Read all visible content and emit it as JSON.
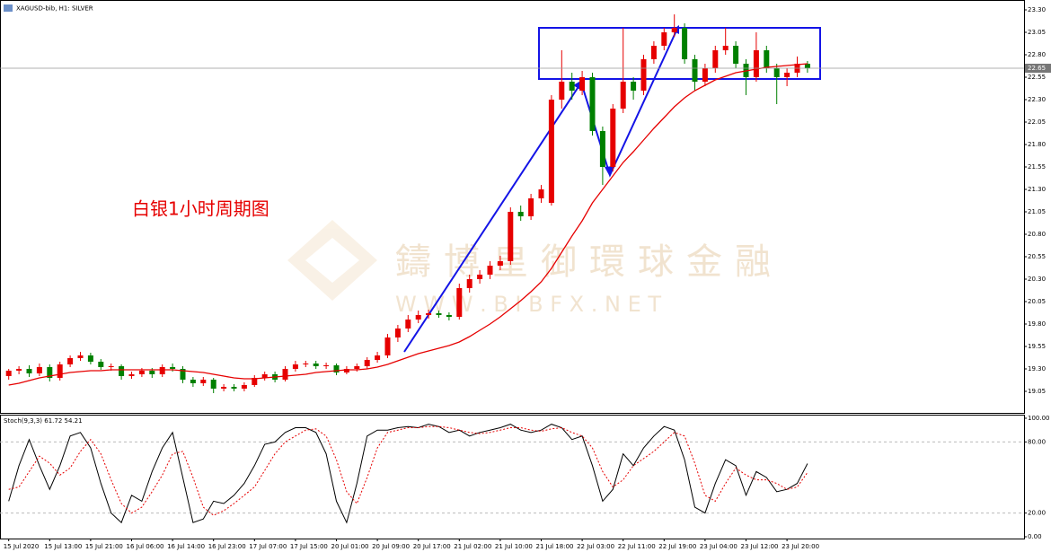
{
  "watermark": {
    "cn": "鑄博皇御環球金融",
    "web": "W W W . B I B F X . N E T"
  },
  "chart_data": [
    {
      "type": "candlestick",
      "title": "XAGUSD-bib, H1: SILVER",
      "annotation": "白银1小时周期图",
      "up_color": "#e60000",
      "down_color": "#008000",
      "categories": [
        "15 Jul 2020",
        null,
        null,
        null,
        "15 Jul 13:00",
        null,
        null,
        null,
        "15 Jul 21:00",
        null,
        null,
        null,
        "16 Jul 06:00",
        null,
        null,
        null,
        "16 Jul 14:00",
        null,
        null,
        null,
        "16 Jul 23:00",
        null,
        null,
        null,
        "17 Jul 07:00",
        null,
        null,
        null,
        "17 Jul 15:00",
        null,
        null,
        null,
        "20 Jul 01:00",
        null,
        null,
        null,
        "20 Jul 09:00",
        null,
        null,
        null,
        "20 Jul 17:00",
        null,
        null,
        null,
        "21 Jul 02:00",
        null,
        null,
        null,
        "21 Jul 10:00",
        null,
        null,
        null,
        "21 Jul 18:00",
        null,
        null,
        null,
        "22 Jul 03:00",
        null,
        null,
        null,
        "22 Jul 11:00",
        null,
        null,
        null,
        "22 Jul 19:00",
        null,
        null,
        null,
        "23 Jul 04:00",
        null,
        null,
        null,
        "23 Jul 12:00",
        null,
        null,
        null,
        "23 Jul 20:00",
        null,
        null
      ],
      "candles": [
        [
          19.22,
          19.3,
          19.18,
          19.28
        ],
        [
          19.28,
          19.33,
          19.24,
          19.3
        ],
        [
          19.3,
          19.34,
          19.21,
          19.25
        ],
        [
          19.25,
          19.36,
          19.22,
          19.32
        ],
        [
          19.32,
          19.35,
          19.16,
          19.2
        ],
        [
          19.2,
          19.38,
          19.17,
          19.35
        ],
        [
          19.35,
          19.45,
          19.32,
          19.42
        ],
        [
          19.42,
          19.49,
          19.39,
          19.45
        ],
        [
          19.45,
          19.48,
          19.35,
          19.38
        ],
        [
          19.38,
          19.41,
          19.29,
          19.32
        ],
        [
          19.32,
          19.36,
          19.28,
          19.33
        ],
        [
          19.33,
          19.35,
          19.18,
          19.22
        ],
        [
          19.22,
          19.27,
          19.19,
          19.24
        ],
        [
          19.24,
          19.31,
          19.21,
          19.28
        ],
        [
          19.28,
          19.31,
          19.2,
          19.24
        ],
        [
          19.24,
          19.35,
          19.21,
          19.32
        ],
        [
          19.32,
          19.36,
          19.27,
          19.3
        ],
        [
          19.3,
          19.33,
          19.14,
          19.18
        ],
        [
          19.18,
          19.21,
          19.1,
          19.14
        ],
        [
          19.14,
          19.21,
          19.11,
          19.18
        ],
        [
          19.18,
          19.2,
          19.03,
          19.08
        ],
        [
          19.08,
          19.13,
          19.05,
          19.1
        ],
        [
          19.1,
          19.13,
          19.05,
          19.08
        ],
        [
          19.08,
          19.15,
          19.05,
          19.12
        ],
        [
          19.12,
          19.23,
          19.1,
          19.2
        ],
        [
          19.2,
          19.27,
          19.17,
          19.24
        ],
        [
          19.24,
          19.27,
          19.15,
          19.18
        ],
        [
          19.18,
          19.33,
          19.16,
          19.3
        ],
        [
          19.3,
          19.39,
          19.27,
          19.35
        ],
        [
          19.35,
          19.39,
          19.32,
          19.36
        ],
        [
          19.36,
          19.39,
          19.3,
          19.33
        ],
        [
          19.33,
          19.37,
          19.3,
          19.34
        ],
        [
          19.34,
          19.36,
          19.23,
          19.26
        ],
        [
          19.26,
          19.33,
          19.24,
          19.3
        ],
        [
          19.3,
          19.36,
          19.27,
          19.33
        ],
        [
          19.33,
          19.43,
          19.3,
          19.4
        ],
        [
          19.4,
          19.49,
          19.37,
          19.45
        ],
        [
          19.45,
          19.69,
          19.42,
          19.65
        ],
        [
          19.65,
          19.79,
          19.6,
          19.75
        ],
        [
          19.75,
          19.9,
          19.71,
          19.85
        ],
        [
          19.85,
          19.95,
          19.81,
          19.9
        ],
        [
          19.9,
          19.96,
          19.86,
          19.92
        ],
        [
          19.92,
          19.95,
          19.87,
          19.9
        ],
        [
          19.9,
          19.93,
          19.84,
          19.88
        ],
        [
          19.88,
          20.25,
          19.85,
          20.2
        ],
        [
          20.2,
          20.35,
          20.15,
          20.3
        ],
        [
          20.3,
          20.4,
          20.25,
          20.35
        ],
        [
          20.35,
          20.5,
          20.3,
          20.45
        ],
        [
          20.45,
          20.56,
          20.4,
          20.5
        ],
        [
          20.5,
          21.1,
          20.46,
          21.05
        ],
        [
          21.05,
          21.12,
          20.95,
          21
        ],
        [
          21,
          21.25,
          20.96,
          21.2
        ],
        [
          21.2,
          21.35,
          21.15,
          21.3
        ],
        [
          21.15,
          22.35,
          21.12,
          22.3
        ],
        [
          22.3,
          22.85,
          22.2,
          22.5
        ],
        [
          22.5,
          22.6,
          22.3,
          22.4
        ],
        [
          22.4,
          22.62,
          22.35,
          22.55
        ],
        [
          22.55,
          22.6,
          21.9,
          21.95
        ],
        [
          21.95,
          22,
          21.35,
          21.55
        ],
        [
          21.55,
          22.25,
          21.5,
          22.2
        ],
        [
          22.2,
          23.1,
          22.15,
          22.5
        ],
        [
          22.5,
          22.55,
          22.3,
          22.4
        ],
        [
          22.4,
          22.8,
          22.35,
          22.75
        ],
        [
          22.75,
          22.95,
          22.7,
          22.9
        ],
        [
          22.9,
          23.1,
          22.85,
          23.05
        ],
        [
          23.05,
          23.25,
          23,
          23.1
        ],
        [
          23.1,
          23.15,
          22.7,
          22.75
        ],
        [
          22.75,
          22.8,
          22.4,
          22.5
        ],
        [
          22.5,
          22.7,
          22.45,
          22.65
        ],
        [
          22.65,
          22.9,
          22.6,
          22.85
        ],
        [
          22.85,
          23.1,
          22.8,
          22.9
        ],
        [
          22.9,
          22.95,
          22.65,
          22.7
        ],
        [
          22.7,
          22.75,
          22.35,
          22.55
        ],
        [
          22.55,
          23.05,
          22.5,
          22.85
        ],
        [
          22.85,
          22.9,
          22.6,
          22.65
        ],
        [
          22.65,
          22.7,
          22.25,
          22.55
        ],
        [
          22.55,
          22.65,
          22.45,
          22.6
        ],
        [
          22.6,
          22.78,
          22.55,
          22.7
        ],
        [
          22.7,
          22.73,
          22.6,
          22.65
        ]
      ],
      "ma": {
        "color": "#e60000",
        "values": [
          19.12,
          19.14,
          19.17,
          19.2,
          19.22,
          19.24,
          19.26,
          19.27,
          19.28,
          19.28,
          19.29,
          19.29,
          19.29,
          19.29,
          19.29,
          19.29,
          19.29,
          19.28,
          19.27,
          19.26,
          19.24,
          19.22,
          19.2,
          19.19,
          19.19,
          19.2,
          19.21,
          19.22,
          19.23,
          19.24,
          19.26,
          19.27,
          19.28,
          19.29,
          19.29,
          19.3,
          19.32,
          19.35,
          19.39,
          19.43,
          19.47,
          19.5,
          19.53,
          19.56,
          19.6,
          19.66,
          19.73,
          19.8,
          19.88,
          19.97,
          20.06,
          20.16,
          20.27,
          20.42,
          20.6,
          20.78,
          20.95,
          21.15,
          21.3,
          21.45,
          21.6,
          21.72,
          21.85,
          21.98,
          22.1,
          22.22,
          22.32,
          22.4,
          22.46,
          22.52,
          22.56,
          22.6,
          22.62,
          22.64,
          22.66,
          22.67,
          22.68,
          22.69,
          22.7
        ]
      },
      "last_price": 22.65,
      "ylim": [
        18.81,
        23.41
      ],
      "yticks": [
        19.05,
        {
          "value": 19.3,
          "label": "19.30"
        },
        19.55,
        {
          "value": 19.8,
          "label": "19.80"
        },
        20.05,
        {
          "value": 20.3,
          "label": "20.30"
        },
        20.55,
        {
          "value": 20.8,
          "label": "20.80"
        },
        21.05,
        {
          "value": 21.3,
          "label": "21.30"
        },
        21.55,
        {
          "value": 21.8,
          "label": "21.80"
        },
        22.05,
        {
          "value": 22.3,
          "label": "22.30"
        },
        22.55,
        {
          "value": 22.8,
          "label": "22.80"
        },
        23.05,
        {
          "value": 23.3,
          "label": "23.30"
        }
      ]
    },
    {
      "type": "line",
      "title": "Stoch(9,3,3) 61.72 54.21",
      "series": [
        {
          "color": "#000000",
          "values": [
            30,
            60,
            82,
            60,
            40,
            60,
            85,
            88,
            75,
            45,
            20,
            12,
            35,
            30,
            55,
            75,
            88,
            50,
            12,
            15,
            30,
            28,
            35,
            45,
            60,
            78,
            80,
            88,
            92,
            92,
            88,
            70,
            30,
            12,
            45,
            85,
            90,
            90,
            92,
            93,
            92,
            95,
            93,
            88,
            90,
            85,
            88,
            90,
            92,
            95,
            90,
            88,
            90,
            95,
            92,
            82,
            85,
            60,
            30,
            40,
            70,
            60,
            75,
            85,
            93,
            90,
            65,
            25,
            20,
            45,
            65,
            60,
            35,
            55,
            50,
            38,
            40,
            45,
            61.72
          ]
        },
        {
          "color": "#e60000",
          "dash": true,
          "values": [
            40,
            42,
            55,
            68,
            62,
            52,
            58,
            72,
            82,
            70,
            48,
            28,
            20,
            25,
            38,
            52,
            70,
            72,
            50,
            25,
            18,
            22,
            28,
            35,
            42,
            56,
            70,
            80,
            85,
            90,
            91,
            85,
            65,
            38,
            28,
            50,
            75,
            88,
            90,
            92,
            92,
            93,
            93,
            92,
            90,
            88,
            87,
            88,
            90,
            92,
            92,
            90,
            89,
            91,
            92,
            88,
            85,
            75,
            55,
            42,
            48,
            60,
            66,
            72,
            80,
            88,
            85,
            62,
            35,
            30,
            45,
            58,
            52,
            48,
            48,
            45,
            40,
            42,
            54.21
          ]
        }
      ],
      "ylim": [
        -1.5,
        103
      ],
      "yticks": [
        {
          "value": 100,
          "label": "100.00"
        },
        {
          "value": 80,
          "label": "80.00"
        },
        {
          "value": 20,
          "label": "20.00"
        },
        {
          "value": 0,
          "label": "0.00"
        }
      ]
    }
  ]
}
